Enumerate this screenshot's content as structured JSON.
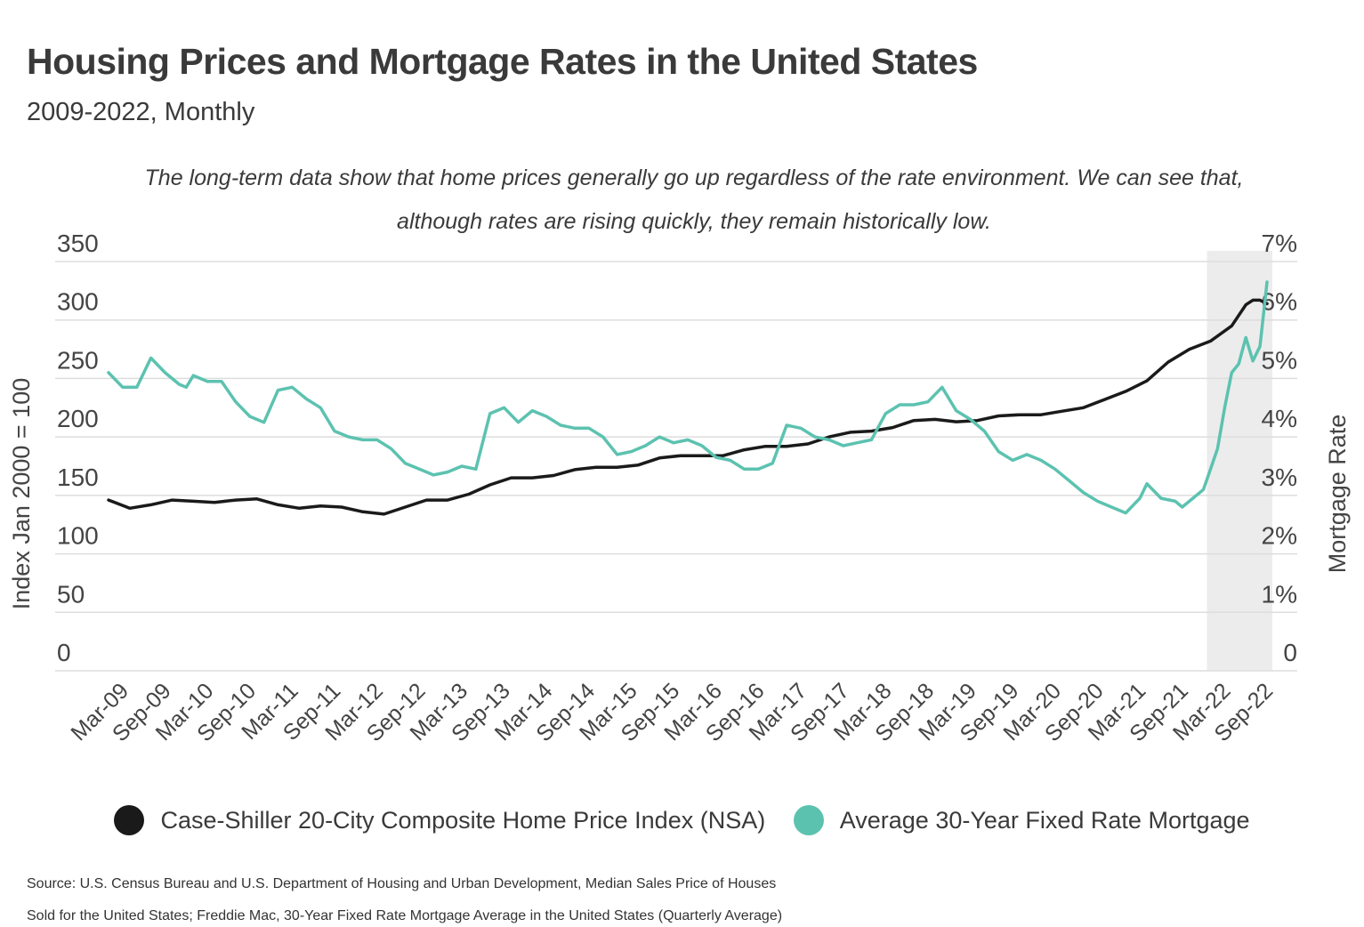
{
  "header": {
    "title": "Housing Prices and Mortgage Rates in the United States",
    "subtitle": "2009-2022, Monthly",
    "annotation_line1": "The long-term data show that home prices generally go up regardless of the rate environment. We can see that,",
    "annotation_line2": "although rates are rising quickly, they remain historically low."
  },
  "colors": {
    "index_line": "#1a1a1a",
    "rate_line": "#5cc2b0",
    "highlight": "#ececec",
    "grid": "#dddddd"
  },
  "chart_data": {
    "type": "line",
    "title": "Housing Prices and Mortgage Rates in the United States",
    "subtitle": "2009-2022, Monthly",
    "x_tick_labels": [
      "Mar-09",
      "Sep-09",
      "Mar-10",
      "Sep-10",
      "Mar-11",
      "Sep-11",
      "Mar-12",
      "Sep-12",
      "Mar-13",
      "Sep-13",
      "Mar-14",
      "Sep-14",
      "Mar-15",
      "Sep-15",
      "Mar-16",
      "Sep-16",
      "Mar-17",
      "Sep-17",
      "Mar-18",
      "Sep-18",
      "Mar-19",
      "Sep-19",
      "Mar-20",
      "Sep-20",
      "Mar-21",
      "Sep-21",
      "Mar-22",
      "Sep-22"
    ],
    "x_start": "Jan-09",
    "x_end": "Sep-22",
    "highlight_region": {
      "from": "Jan-22",
      "to": "Sep-22"
    },
    "ylabel_left": "Index Jan 2000 = 100",
    "ylim_left": [
      0,
      350
    ],
    "yticks_left": [
      "0",
      "50",
      "100",
      "150",
      "200",
      "250",
      "300",
      "350"
    ],
    "ylabel_right": "Mortgage Rate",
    "ylim_right": [
      0,
      7
    ],
    "yticks_right": [
      "0",
      "1%",
      "2%",
      "3%",
      "4%",
      "5%",
      "6%",
      "7%"
    ],
    "grid": true,
    "legend_position": "bottom",
    "series": [
      {
        "name": "Case-Shiller 20-City Composite Home Price Index (NSA)",
        "axis": "left",
        "points": [
          [
            "Jan-09",
            146
          ],
          [
            "Apr-09",
            139
          ],
          [
            "Jul-09",
            142
          ],
          [
            "Oct-09",
            146
          ],
          [
            "Jan-10",
            145
          ],
          [
            "Apr-10",
            144
          ],
          [
            "Jul-10",
            146
          ],
          [
            "Oct-10",
            147
          ],
          [
            "Jan-11",
            142
          ],
          [
            "Apr-11",
            139
          ],
          [
            "Jul-11",
            141
          ],
          [
            "Oct-11",
            140
          ],
          [
            "Jan-12",
            136
          ],
          [
            "Apr-12",
            134
          ],
          [
            "Jul-12",
            140
          ],
          [
            "Oct-12",
            146
          ],
          [
            "Jan-13",
            146
          ],
          [
            "Apr-13",
            151
          ],
          [
            "Jul-13",
            159
          ],
          [
            "Oct-13",
            165
          ],
          [
            "Jan-14",
            165
          ],
          [
            "Apr-14",
            167
          ],
          [
            "Jul-14",
            172
          ],
          [
            "Oct-14",
            174
          ],
          [
            "Jan-15",
            174
          ],
          [
            "Apr-15",
            176
          ],
          [
            "Jul-15",
            182
          ],
          [
            "Oct-15",
            184
          ],
          [
            "Jan-16",
            184
          ],
          [
            "Apr-16",
            184
          ],
          [
            "Jul-16",
            189
          ],
          [
            "Oct-16",
            192
          ],
          [
            "Jan-17",
            192
          ],
          [
            "Apr-17",
            194
          ],
          [
            "Jul-17",
            200
          ],
          [
            "Oct-17",
            204
          ],
          [
            "Jan-18",
            205
          ],
          [
            "Apr-18",
            208
          ],
          [
            "Jul-18",
            214
          ],
          [
            "Oct-18",
            215
          ],
          [
            "Jan-19",
            213
          ],
          [
            "Apr-19",
            214
          ],
          [
            "Jul-19",
            218
          ],
          [
            "Oct-19",
            219
          ],
          [
            "Jan-20",
            219
          ],
          [
            "Apr-20",
            222
          ],
          [
            "Jul-20",
            225
          ],
          [
            "Oct-20",
            232
          ],
          [
            "Jan-21",
            239
          ],
          [
            "Apr-21",
            248
          ],
          [
            "Jul-21",
            264
          ],
          [
            "Oct-21",
            275
          ],
          [
            "Jan-22",
            282
          ],
          [
            "Apr-22",
            295
          ],
          [
            "Jun-22",
            313
          ],
          [
            "Jul-22",
            317
          ],
          [
            "Aug-22",
            317
          ],
          [
            "Sep-22",
            314
          ]
        ]
      },
      {
        "name": "Average 30-Year Fixed Rate Mortgage",
        "axis": "right",
        "points": [
          [
            "Jan-09",
            5.1
          ],
          [
            "Mar-09",
            4.85
          ],
          [
            "May-09",
            4.85
          ],
          [
            "Jul-09",
            5.35
          ],
          [
            "Sep-09",
            5.1
          ],
          [
            "Nov-09",
            4.9
          ],
          [
            "Dec-09",
            4.85
          ],
          [
            "Jan-10",
            5.05
          ],
          [
            "Mar-10",
            4.95
          ],
          [
            "May-10",
            4.95
          ],
          [
            "Jul-10",
            4.6
          ],
          [
            "Sep-10",
            4.35
          ],
          [
            "Nov-10",
            4.25
          ],
          [
            "Jan-11",
            4.8
          ],
          [
            "Mar-11",
            4.85
          ],
          [
            "May-11",
            4.65
          ],
          [
            "Jul-11",
            4.5
          ],
          [
            "Sep-11",
            4.1
          ],
          [
            "Nov-11",
            4.0
          ],
          [
            "Jan-12",
            3.95
          ],
          [
            "Mar-12",
            3.95
          ],
          [
            "May-12",
            3.8
          ],
          [
            "Jul-12",
            3.55
          ],
          [
            "Sep-12",
            3.45
          ],
          [
            "Nov-12",
            3.35
          ],
          [
            "Jan-13",
            3.4
          ],
          [
            "Mar-13",
            3.5
          ],
          [
            "May-13",
            3.45
          ],
          [
            "Jul-13",
            4.4
          ],
          [
            "Sep-13",
            4.5
          ],
          [
            "Nov-13",
            4.25
          ],
          [
            "Jan-14",
            4.45
          ],
          [
            "Mar-14",
            4.35
          ],
          [
            "May-14",
            4.2
          ],
          [
            "Jul-14",
            4.15
          ],
          [
            "Sep-14",
            4.15
          ],
          [
            "Nov-14",
            4.0
          ],
          [
            "Jan-15",
            3.7
          ],
          [
            "Mar-15",
            3.75
          ],
          [
            "May-15",
            3.85
          ],
          [
            "Jul-15",
            4.0
          ],
          [
            "Sep-15",
            3.9
          ],
          [
            "Nov-15",
            3.95
          ],
          [
            "Jan-16",
            3.85
          ],
          [
            "Mar-16",
            3.65
          ],
          [
            "May-16",
            3.6
          ],
          [
            "Jul-16",
            3.45
          ],
          [
            "Sep-16",
            3.45
          ],
          [
            "Nov-16",
            3.55
          ],
          [
            "Jan-17",
            4.2
          ],
          [
            "Mar-17",
            4.15
          ],
          [
            "May-17",
            4.0
          ],
          [
            "Jul-17",
            3.95
          ],
          [
            "Sep-17",
            3.85
          ],
          [
            "Nov-17",
            3.9
          ],
          [
            "Jan-18",
            3.95
          ],
          [
            "Mar-18",
            4.4
          ],
          [
            "May-18",
            4.55
          ],
          [
            "Jul-18",
            4.55
          ],
          [
            "Sep-18",
            4.6
          ],
          [
            "Nov-18",
            4.85
          ],
          [
            "Jan-19",
            4.45
          ],
          [
            "Mar-19",
            4.3
          ],
          [
            "May-19",
            4.1
          ],
          [
            "Jul-19",
            3.75
          ],
          [
            "Sep-19",
            3.6
          ],
          [
            "Nov-19",
            3.7
          ],
          [
            "Jan-20",
            3.6
          ],
          [
            "Mar-20",
            3.45
          ],
          [
            "May-20",
            3.25
          ],
          [
            "Jul-20",
            3.05
          ],
          [
            "Sep-20",
            2.9
          ],
          [
            "Nov-20",
            2.8
          ],
          [
            "Jan-21",
            2.7
          ],
          [
            "Mar-21",
            2.95
          ],
          [
            "Apr-21",
            3.2
          ],
          [
            "Jun-21",
            2.95
          ],
          [
            "Aug-21",
            2.9
          ],
          [
            "Sep-21",
            2.8
          ],
          [
            "Nov-21",
            3.0
          ],
          [
            "Dec-21",
            3.1
          ],
          [
            "Jan-22",
            3.45
          ],
          [
            "Feb-22",
            3.8
          ],
          [
            "Mar-22",
            4.5
          ],
          [
            "Apr-22",
            5.1
          ],
          [
            "May-22",
            5.25
          ],
          [
            "Jun-22",
            5.7
          ],
          [
            "Jul-22",
            5.3
          ],
          [
            "Aug-22",
            5.55
          ],
          [
            "Sep-22",
            6.65
          ]
        ]
      }
    ]
  },
  "legend": {
    "items": [
      {
        "label": "Case-Shiller 20-City Composite Home Price Index (NSA)",
        "color": "#1a1a1a"
      },
      {
        "label": "Average 30-Year Fixed Rate Mortgage",
        "color": "#5cc2b0"
      }
    ]
  },
  "source": {
    "line1": "Source:  U.S. Census Bureau and U.S. Department of Housing and Urban Development, Median Sales Price of Houses",
    "line2": "Sold for the United States; Freddie Mac, 30-Year Fixed Rate Mortgage Average in the United States (Quarterly Average)"
  }
}
